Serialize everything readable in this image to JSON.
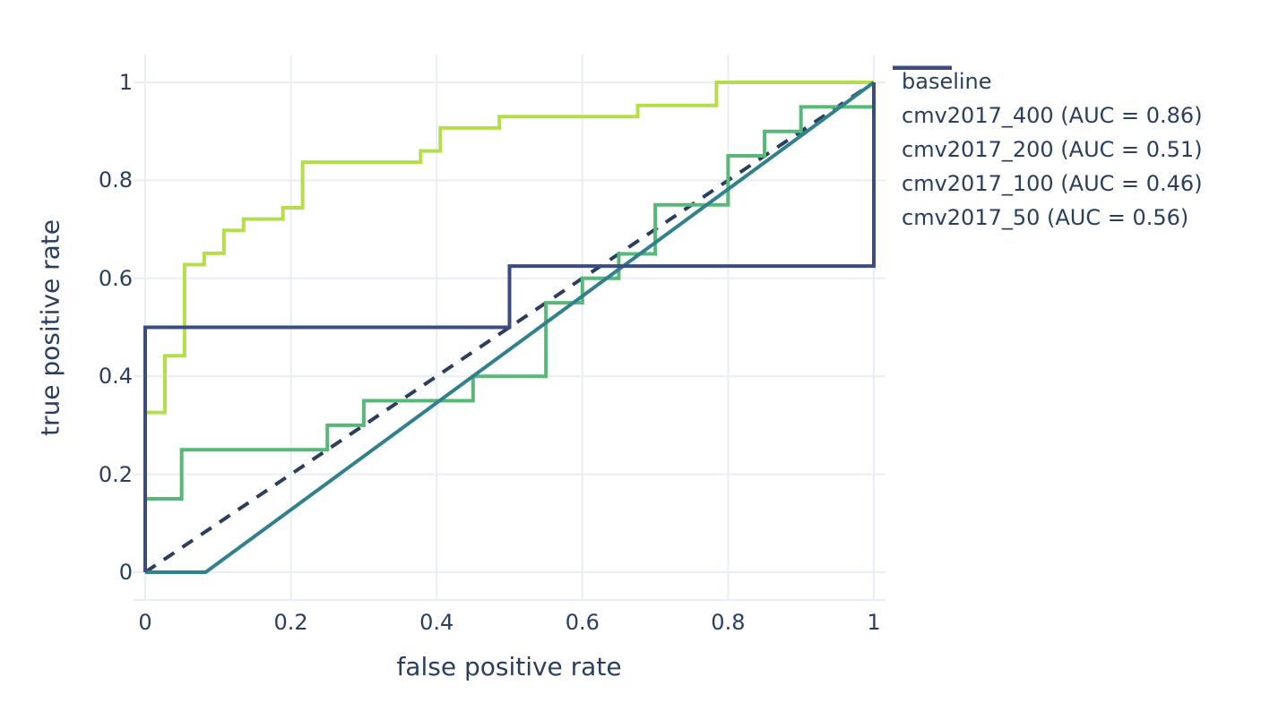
{
  "chart_data": {
    "type": "line",
    "title": "",
    "xlabel": "false positive rate",
    "ylabel": "true positive rate",
    "xlim": [
      0,
      1
    ],
    "ylim": [
      0,
      1
    ],
    "grid": true,
    "legend_position": "right-top",
    "x_ticks": [
      "0",
      "0.2",
      "0.4",
      "0.6",
      "0.8",
      "1"
    ],
    "x_tick_values": [
      0,
      0.2,
      0.4,
      0.6,
      0.8,
      1
    ],
    "y_ticks": [
      "0",
      "0.2",
      "0.4",
      "0.6",
      "0.8",
      "1"
    ],
    "y_tick_values": [
      0,
      0.2,
      0.4,
      0.6,
      0.8,
      1
    ],
    "series": [
      {
        "name": "baseline",
        "color": "#2a3f5f",
        "dash": true,
        "auc": null,
        "points": [
          [
            0,
            0
          ],
          [
            1,
            1
          ]
        ]
      },
      {
        "name": "cmv2017_400 (AUC = 0.86)",
        "color": "#b5de4b",
        "dash": false,
        "auc": 0.86,
        "points": [
          [
            0,
            0
          ],
          [
            0,
            0.326
          ],
          [
            0.027,
            0.326
          ],
          [
            0.027,
            0.442
          ],
          [
            0.054,
            0.442
          ],
          [
            0.054,
            0.628
          ],
          [
            0.081,
            0.628
          ],
          [
            0.081,
            0.651
          ],
          [
            0.108,
            0.651
          ],
          [
            0.108,
            0.698
          ],
          [
            0.135,
            0.698
          ],
          [
            0.135,
            0.721
          ],
          [
            0.189,
            0.721
          ],
          [
            0.189,
            0.744
          ],
          [
            0.216,
            0.744
          ],
          [
            0.216,
            0.837
          ],
          [
            0.378,
            0.837
          ],
          [
            0.378,
            0.86
          ],
          [
            0.405,
            0.86
          ],
          [
            0.405,
            0.907
          ],
          [
            0.486,
            0.907
          ],
          [
            0.486,
            0.93
          ],
          [
            0.676,
            0.93
          ],
          [
            0.676,
            0.953
          ],
          [
            0.784,
            0.953
          ],
          [
            0.784,
            1
          ],
          [
            1,
            1
          ]
        ]
      },
      {
        "name": "cmv2017_200 (AUC = 0.51)",
        "color": "#57b877",
        "dash": false,
        "auc": 0.51,
        "points": [
          [
            0,
            0
          ],
          [
            0,
            0.15
          ],
          [
            0.05,
            0.15
          ],
          [
            0.05,
            0.25
          ],
          [
            0.25,
            0.25
          ],
          [
            0.25,
            0.3
          ],
          [
            0.3,
            0.3
          ],
          [
            0.3,
            0.35
          ],
          [
            0.45,
            0.35
          ],
          [
            0.45,
            0.4
          ],
          [
            0.55,
            0.4
          ],
          [
            0.55,
            0.55
          ],
          [
            0.6,
            0.55
          ],
          [
            0.6,
            0.6
          ],
          [
            0.65,
            0.6
          ],
          [
            0.65,
            0.65
          ],
          [
            0.7,
            0.65
          ],
          [
            0.7,
            0.75
          ],
          [
            0.8,
            0.75
          ],
          [
            0.8,
            0.85
          ],
          [
            0.85,
            0.85
          ],
          [
            0.85,
            0.9
          ],
          [
            0.9,
            0.9
          ],
          [
            0.9,
            0.95
          ],
          [
            1,
            0.95
          ],
          [
            1,
            1
          ]
        ]
      },
      {
        "name": "cmv2017_100 (AUC = 0.46)",
        "color": "#31808e",
        "dash": false,
        "auc": 0.46,
        "points": [
          [
            0,
            0
          ],
          [
            0.083,
            0
          ],
          [
            1,
            1
          ]
        ]
      },
      {
        "name": "cmv2017_50 (AUC = 0.56)",
        "color": "#3d4c80",
        "dash": false,
        "auc": 0.56,
        "points": [
          [
            0,
            0
          ],
          [
            0,
            0.5
          ],
          [
            0.5,
            0.5
          ],
          [
            0.5,
            0.625
          ],
          [
            1,
            0.625
          ],
          [
            1,
            1
          ]
        ]
      }
    ]
  },
  "colors": {
    "text": "#2a3f5f",
    "gridline": "#e9eef6",
    "axis_line": "#e9eef6",
    "background": "#ffffff"
  }
}
